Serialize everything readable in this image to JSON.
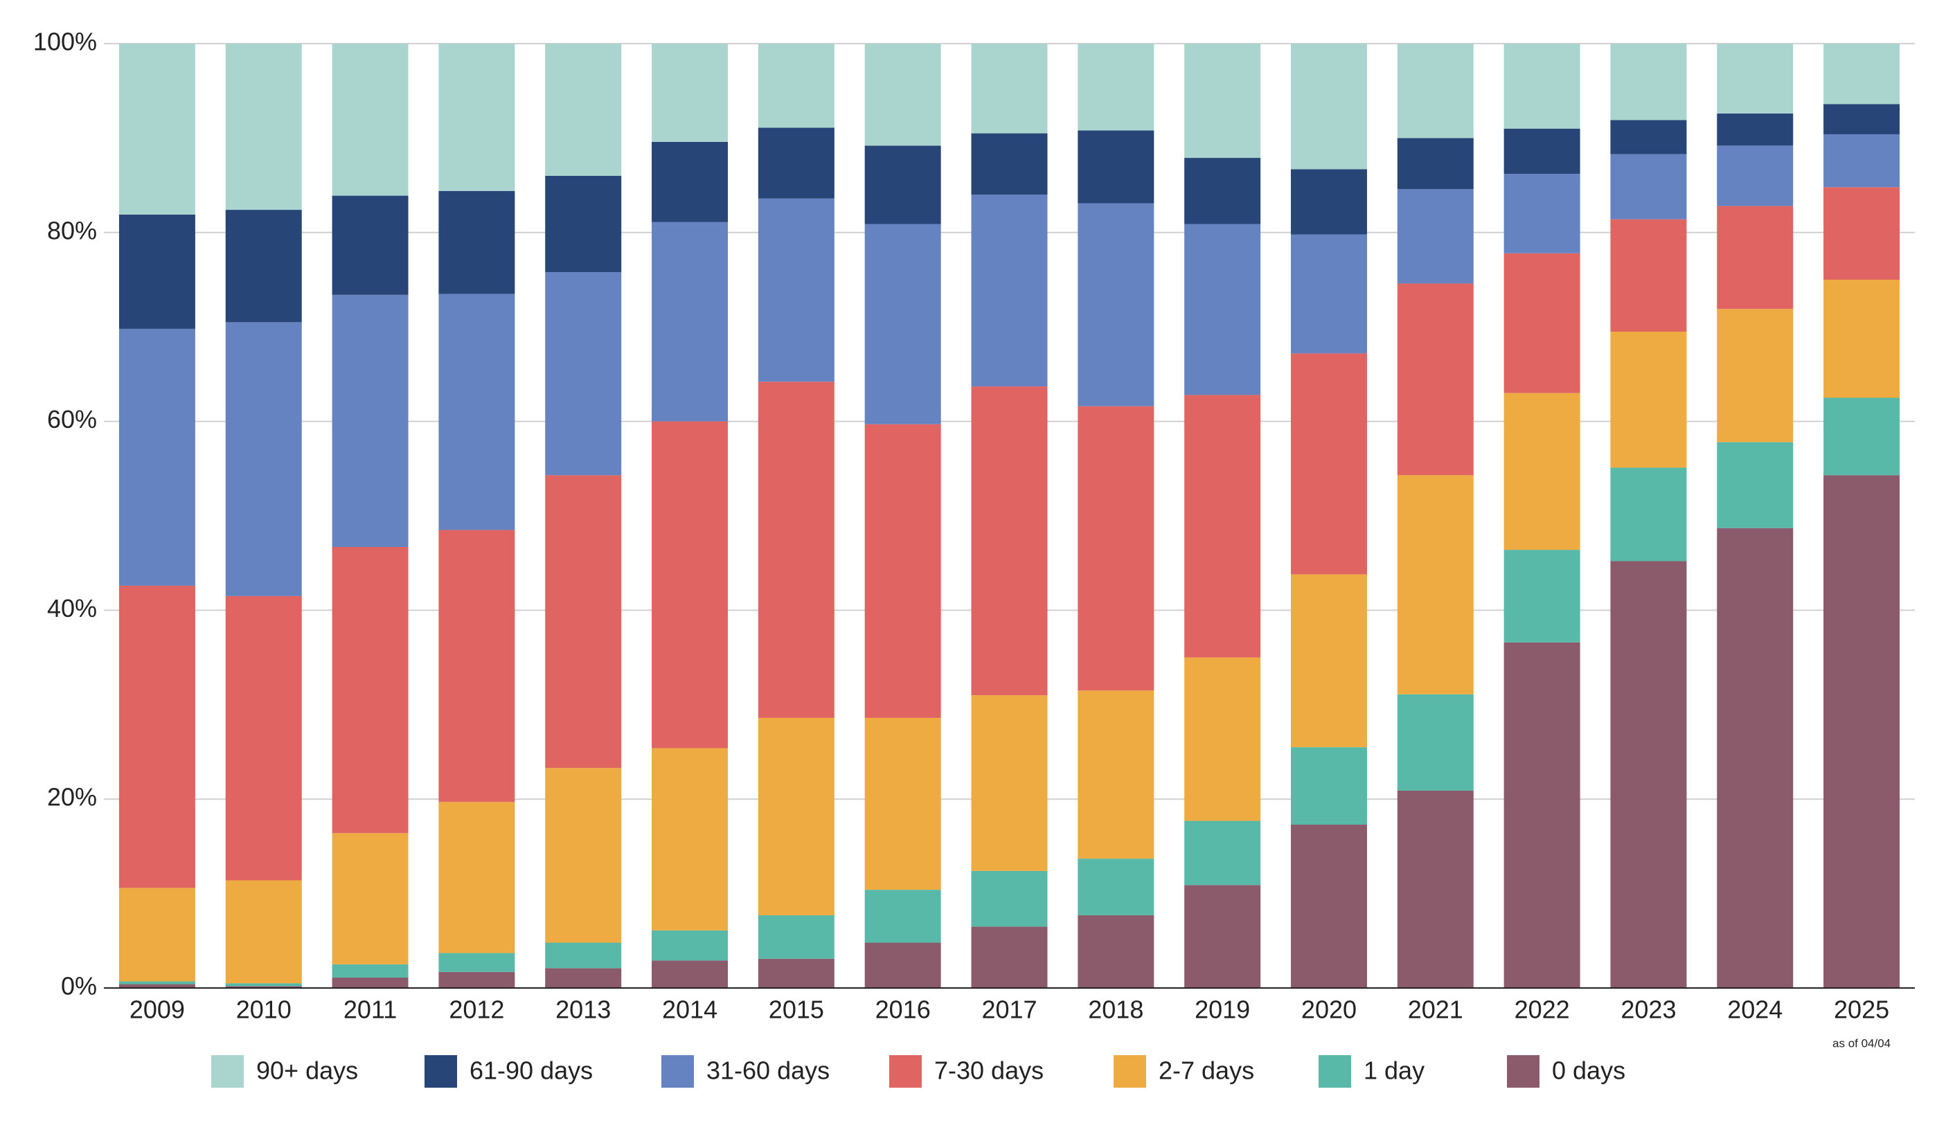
{
  "chart_data": {
    "type": "stacked-bar",
    "categories": [
      "2009",
      "2010",
      "2011",
      "2012",
      "2013",
      "2014",
      "2015",
      "2016",
      "2017",
      "2018",
      "2019",
      "2020",
      "2021",
      "2022",
      "2023",
      "2024",
      "2025"
    ],
    "annotation": "as of 04/04",
    "ylim": [
      0,
      100
    ],
    "yticks": [
      {
        "value": 0,
        "label": "0%"
      },
      {
        "value": 20,
        "label": "20%"
      },
      {
        "value": 40,
        "label": "40%"
      },
      {
        "value": 60,
        "label": "60%"
      },
      {
        "value": 80,
        "label": "80%"
      },
      {
        "value": 100,
        "label": "100%"
      }
    ],
    "grid": true,
    "legend": "bottom",
    "series": [
      {
        "name": "90+ days",
        "color": "#aad5cf",
        "values": [
          18.1,
          17.6,
          16.1,
          15.6,
          14.0,
          10.4,
          8.9,
          10.8,
          9.5,
          9.2,
          12.1,
          13.3,
          10.0,
          9.0,
          8.1,
          7.4,
          6.4
        ]
      },
      {
        "name": "61-90 days",
        "color": "#284577",
        "values": [
          12.1,
          11.9,
          10.5,
          10.9,
          10.2,
          8.5,
          7.5,
          8.3,
          6.5,
          7.7,
          7.0,
          6.9,
          5.4,
          4.8,
          3.6,
          3.4,
          3.2
        ]
      },
      {
        "name": "31-60 days",
        "color": "#6683c1",
        "values": [
          27.2,
          29.0,
          26.7,
          25.0,
          21.5,
          21.1,
          19.4,
          21.2,
          20.3,
          21.5,
          18.1,
          12.6,
          10.0,
          8.4,
          6.9,
          6.4,
          5.6
        ]
      },
      {
        "name": "7-30 days",
        "color": "#e06461",
        "values": [
          32.0,
          30.1,
          30.3,
          28.8,
          31.0,
          34.6,
          35.6,
          31.1,
          32.7,
          30.1,
          27.8,
          23.4,
          20.3,
          14.8,
          11.9,
          10.9,
          9.8
        ]
      },
      {
        "name": "2-7 days",
        "color": "#eeab41",
        "values": [
          9.9,
          10.9,
          13.9,
          16.0,
          18.5,
          19.3,
          20.9,
          18.2,
          18.6,
          17.8,
          17.3,
          18.3,
          23.2,
          16.6,
          14.4,
          14.1,
          12.5
        ]
      },
      {
        "name": "1 day",
        "color": "#59b9a8",
        "values": [
          0.3,
          0.3,
          1.4,
          2.0,
          2.7,
          3.2,
          4.6,
          5.6,
          5.9,
          6.0,
          6.8,
          8.2,
          10.2,
          9.8,
          9.9,
          9.1,
          8.2
        ]
      },
      {
        "name": "0 days",
        "color": "#8b5b6b",
        "values": [
          0.4,
          0.2,
          1.1,
          1.7,
          2.1,
          2.9,
          3.1,
          4.8,
          6.5,
          7.7,
          10.9,
          17.3,
          20.9,
          36.6,
          45.2,
          48.7,
          54.3
        ]
      }
    ]
  }
}
